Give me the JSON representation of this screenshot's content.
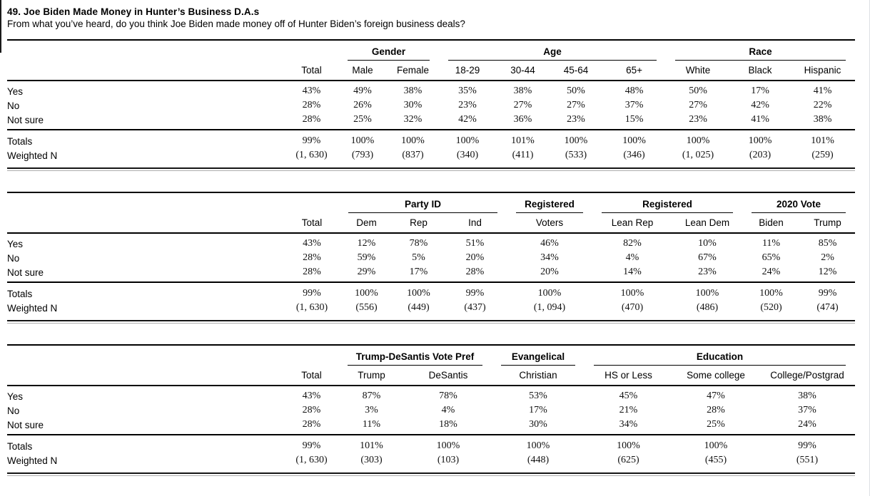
{
  "header": {
    "title": "49. Joe Biden Made Money in Hunter’s Business D.A.s",
    "question": "From what you’ve heard, do you think Joe Biden made money off of Hunter Biden’s foreign business deals?"
  },
  "colors": {
    "text": "#000000",
    "rule": "#000000",
    "background": "#ffffff"
  },
  "tables": [
    {
      "name": "demographics",
      "groups": [
        {
          "label": "",
          "span": 2
        },
        {
          "label": "Gender",
          "span": 2
        },
        {
          "label": "Age",
          "span": 4
        },
        {
          "label": "Race",
          "span": 3
        }
      ],
      "columns": [
        "Total",
        "Male",
        "Female",
        "18-29",
        "30-44",
        "45-64",
        "65+",
        "White",
        "Black",
        "Hispanic"
      ],
      "answer_rows": [
        {
          "label": "Yes",
          "values": [
            "43%",
            "49%",
            "38%",
            "35%",
            "38%",
            "50%",
            "48%",
            "50%",
            "17%",
            "41%"
          ]
        },
        {
          "label": "No",
          "values": [
            "28%",
            "26%",
            "30%",
            "23%",
            "27%",
            "27%",
            "37%",
            "27%",
            "42%",
            "22%"
          ]
        },
        {
          "label": "Not sure",
          "values": [
            "28%",
            "25%",
            "32%",
            "42%",
            "36%",
            "23%",
            "15%",
            "23%",
            "41%",
            "38%"
          ]
        }
      ],
      "summary_rows": [
        {
          "label": "Totals",
          "values": [
            "99%",
            "100%",
            "100%",
            "100%",
            "101%",
            "100%",
            "100%",
            "100%",
            "100%",
            "101%"
          ]
        },
        {
          "label": "Weighted N",
          "values": [
            "(1, 630)",
            "(793)",
            "(837)",
            "(340)",
            "(411)",
            "(533)",
            "(346)",
            "(1, 025)",
            "(203)",
            "(259)"
          ]
        }
      ]
    },
    {
      "name": "politics",
      "groups": [
        {
          "label": "",
          "span": 2
        },
        {
          "label": "Party ID",
          "span": 3
        },
        {
          "label": "Registered",
          "span": 1
        },
        {
          "label": "Registered",
          "span": 2
        },
        {
          "label": "2020 Vote",
          "span": 2
        }
      ],
      "columns": [
        "Total",
        "Dem",
        "Rep",
        "Ind",
        "Voters",
        "Lean Rep",
        "Lean Dem",
        "Biden",
        "Trump"
      ],
      "answer_rows": [
        {
          "label": "Yes",
          "values": [
            "43%",
            "12%",
            "78%",
            "51%",
            "46%",
            "82%",
            "10%",
            "11%",
            "85%"
          ]
        },
        {
          "label": "No",
          "values": [
            "28%",
            "59%",
            "5%",
            "20%",
            "34%",
            "4%",
            "67%",
            "65%",
            "2%"
          ]
        },
        {
          "label": "Not sure",
          "values": [
            "28%",
            "29%",
            "17%",
            "28%",
            "20%",
            "14%",
            "23%",
            "24%",
            "12%"
          ]
        }
      ],
      "summary_rows": [
        {
          "label": "Totals",
          "values": [
            "99%",
            "100%",
            "100%",
            "99%",
            "100%",
            "100%",
            "100%",
            "100%",
            "99%"
          ]
        },
        {
          "label": "Weighted N",
          "values": [
            "(1, 630)",
            "(556)",
            "(449)",
            "(437)",
            "(1, 094)",
            "(470)",
            "(486)",
            "(520)",
            "(474)"
          ]
        }
      ]
    },
    {
      "name": "vote-pref-religion-education",
      "groups": [
        {
          "label": "",
          "span": 2
        },
        {
          "label": "Trump-DeSantis Vote Pref",
          "span": 2
        },
        {
          "label": "Evangelical",
          "span": 1
        },
        {
          "label": "Education",
          "span": 3
        }
      ],
      "columns": [
        "Total",
        "Trump",
        "DeSantis",
        "Christian",
        "HS or Less",
        "Some college",
        "College/Postgrad"
      ],
      "answer_rows": [
        {
          "label": "Yes",
          "values": [
            "43%",
            "87%",
            "78%",
            "53%",
            "45%",
            "47%",
            "38%"
          ]
        },
        {
          "label": "No",
          "values": [
            "28%",
            "3%",
            "4%",
            "17%",
            "21%",
            "28%",
            "37%"
          ]
        },
        {
          "label": "Not sure",
          "values": [
            "28%",
            "11%",
            "18%",
            "30%",
            "34%",
            "25%",
            "24%"
          ]
        }
      ],
      "summary_rows": [
        {
          "label": "Totals",
          "values": [
            "99%",
            "101%",
            "100%",
            "100%",
            "100%",
            "100%",
            "99%"
          ]
        },
        {
          "label": "Weighted N",
          "values": [
            "(1, 630)",
            "(303)",
            "(103)",
            "(448)",
            "(625)",
            "(455)",
            "(551)"
          ]
        }
      ]
    }
  ]
}
